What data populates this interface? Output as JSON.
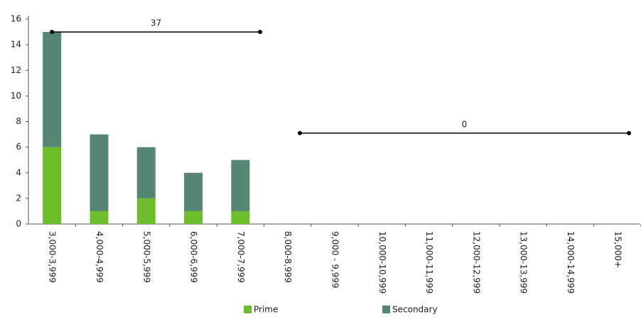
{
  "chart_data": {
    "type": "stacked_bar",
    "categories": [
      "3,000-3,999",
      "4,000-4,999",
      "5,000-5,999",
      "6,000-6,999",
      "7,000-7,999",
      "8,000-8,999",
      "9,000 - 9,999",
      "10,000-10,999",
      "11,000-11,999",
      "12,000-12,999",
      "13,000-13,999",
      "14,000-14,999",
      "15,000+"
    ],
    "series": [
      {
        "name": "Prime",
        "color": "#6cbf2a",
        "values": [
          6,
          1,
          2,
          1,
          1,
          0,
          0,
          0,
          0,
          0,
          0,
          0,
          0
        ]
      },
      {
        "name": "Secondary",
        "color": "#568773",
        "values": [
          9,
          6,
          4,
          3,
          4,
          0,
          0,
          0,
          0,
          0,
          0,
          0,
          0
        ]
      }
    ],
    "ylim": [
      0,
      16
    ],
    "yticks": [
      0,
      2,
      4,
      6,
      8,
      10,
      12,
      14,
      16
    ],
    "grid": false,
    "annotations": [
      {
        "text": "37",
        "y": 15
      },
      {
        "text": "0",
        "y": 7.1
      }
    ],
    "legend": "bottom"
  }
}
